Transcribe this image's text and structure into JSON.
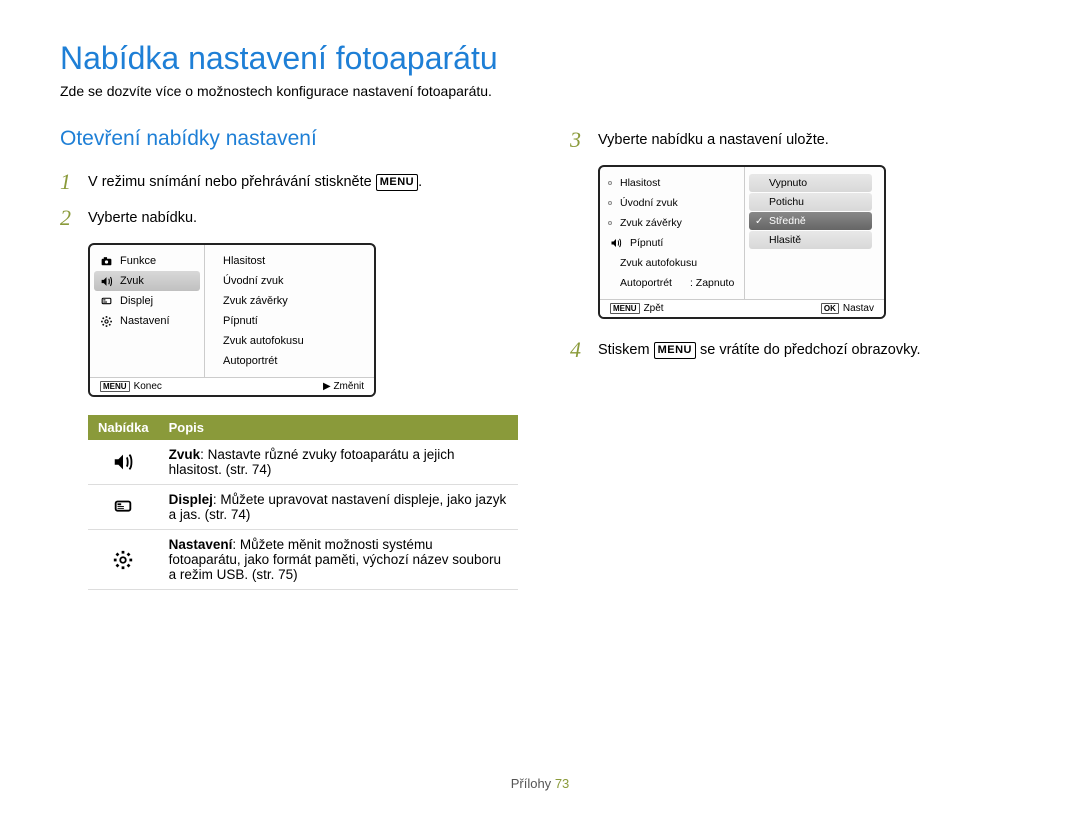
{
  "page_title": "Nabídka nastavení fotoaparátu",
  "page_subtitle": "Zde se dozvíte více o možnostech konfigurace nastavení fotoaparátu.",
  "section_title": "Otevření nabídky nastavení",
  "steps": {
    "s1_pre": "V režimu snímání nebo přehrávání stiskněte ",
    "s1_btn": "MENU",
    "s1_post": ".",
    "s2": "Vyberte nabídku.",
    "s3": "Vyberte nabídku a nastavení uložte.",
    "s4_pre": "Stiskem ",
    "s4_btn": "MENU",
    "s4_post": " se vrátíte do předchozí obrazovky."
  },
  "lcd1": {
    "left": [
      "Funkce",
      "Zvuk",
      "Displej",
      "Nastavení"
    ],
    "selected_left_index": 1,
    "right": [
      "Hlasitost",
      "Úvodní zvuk",
      "Zvuk závěrky",
      "Pípnutí",
      "Zvuk autofokusu",
      "Autoportrét"
    ],
    "footer_left_btn": "MENU",
    "footer_left": "Konec",
    "footer_right_arrow": "▶",
    "footer_right": "Změnit"
  },
  "lcd2": {
    "left": [
      {
        "label": "Hlasitost",
        "bullet": true
      },
      {
        "label": "Úvodní zvuk",
        "bullet": true
      },
      {
        "label": "Zvuk závěrky",
        "bullet": true
      },
      {
        "label": "Pípnutí",
        "icon": true
      },
      {
        "label": "Zvuk autofokusu",
        "bullet": false
      },
      {
        "label": "Autoportrét",
        "value": ": Zapnuto"
      }
    ],
    "options": [
      "Vypnuto",
      "Potichu",
      "Středně",
      "Hlasitě"
    ],
    "selected_option_index": 2,
    "footer_left_btn": "MENU",
    "footer_left": "Zpět",
    "footer_right_btn": "OK",
    "footer_right": "Nastav"
  },
  "table": {
    "h1": "Nabídka",
    "h2": "Popis",
    "rows": [
      {
        "icon": "sound",
        "bold": "Zvuk",
        "text": ": Nastavte různé zvuky fotoaparátu a jejich hlasitost. (str. 74)"
      },
      {
        "icon": "display",
        "bold": "Displej",
        "text": ": Můžete upravovat nastavení displeje, jako jazyk a jas. (str. 74)"
      },
      {
        "icon": "gear",
        "bold": "Nastavení",
        "text": ": Můžete měnit možnosti systému fotoaparátu, jako formát paměti, výchozí název souboru a režim USB. (str. 75)"
      }
    ]
  },
  "footer_label": "Přílohy",
  "footer_page": "73"
}
